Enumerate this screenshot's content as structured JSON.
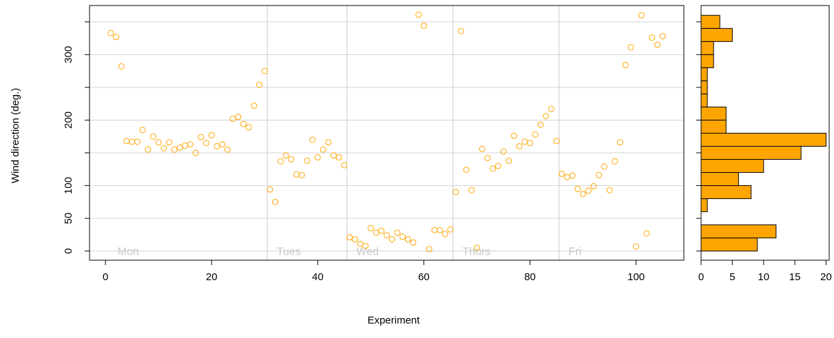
{
  "chart_data": [
    {
      "type": "scatter",
      "xlabel": "Experiment",
      "ylabel": "Wind direction (deg.)",
      "xlim": [
        -3,
        109
      ],
      "ylim": [
        -14,
        375
      ],
      "x_ticks": [
        0,
        20,
        40,
        60,
        80,
        100
      ],
      "y_ticks": [
        0,
        50,
        100,
        150,
        200,
        250,
        300,
        350
      ],
      "y_tick_labels": [
        "0",
        "50",
        "100",
        "",
        "200",
        "",
        "300",
        ""
      ],
      "grid": true,
      "day_dividers": [
        30.5,
        45.5,
        65.5,
        85.5
      ],
      "day_labels": [
        {
          "label": "Mon",
          "x": 1.5
        },
        {
          "label": "Tues",
          "x": 31.5
        },
        {
          "label": "Wed",
          "x": 46.5
        },
        {
          "label": "Thurs",
          "x": 66.5
        },
        {
          "label": "Fri",
          "x": 86.5
        }
      ],
      "series": [
        {
          "point_style": "open-circle",
          "x": [
            1,
            2,
            3,
            4,
            5,
            6,
            7,
            8,
            9,
            10,
            11,
            12,
            13,
            14,
            15,
            16,
            17,
            18,
            19,
            20,
            21,
            22,
            23,
            24,
            25,
            26,
            27,
            28,
            29,
            30,
            31,
            32,
            33,
            34,
            35,
            36,
            37,
            38,
            39,
            40,
            41,
            42,
            43,
            44,
            45,
            46,
            47,
            48,
            49,
            50,
            51,
            52,
            53,
            54,
            55,
            56,
            57,
            58,
            59,
            60,
            61,
            62,
            63,
            64,
            65,
            66,
            67,
            68,
            69,
            70,
            71,
            72,
            73,
            74,
            75,
            76,
            77,
            78,
            79,
            80,
            81,
            82,
            83,
            84,
            85,
            86,
            87,
            88,
            89,
            90,
            91,
            92,
            93,
            94,
            95,
            96,
            97,
            98,
            99,
            100,
            101,
            102,
            103,
            104,
            105
          ],
          "y": [
            333,
            327,
            282,
            168,
            167,
            167,
            185,
            155,
            175,
            166,
            157,
            166,
            155,
            158,
            161,
            163,
            150,
            174,
            165,
            177,
            160,
            163,
            155,
            202,
            205,
            194,
            189,
            222,
            254,
            275,
            94,
            75,
            137,
            146,
            140,
            117,
            116,
            138,
            170,
            143,
            155,
            166,
            146,
            143,
            131,
            21,
            18,
            11,
            8,
            35,
            28,
            31,
            24,
            18,
            28,
            22,
            18,
            13,
            361,
            344,
            3,
            32,
            32,
            26,
            33,
            90,
            336,
            124,
            93,
            5,
            156,
            142,
            126,
            130,
            152,
            138,
            176,
            160,
            167,
            165,
            178,
            193,
            206,
            217,
            168,
            118,
            113,
            115,
            95,
            87,
            92,
            99,
            116,
            129,
            93,
            137,
            166,
            284,
            311,
            7,
            360,
            27,
            326,
            315,
            328
          ]
        }
      ]
    },
    {
      "type": "bar",
      "orientation": "horizontal",
      "xlim": [
        0,
        20.5
      ],
      "x_ticks": [
        0,
        5,
        10,
        15,
        20
      ],
      "ylim": [
        -14,
        375
      ],
      "bin_width": 20,
      "bin_starts": [
        0,
        20,
        40,
        60,
        80,
        100,
        120,
        140,
        160,
        180,
        200,
        220,
        240,
        260,
        280,
        300,
        320,
        340
      ],
      "values": [
        9,
        12,
        0,
        1,
        8,
        6,
        10,
        16,
        20,
        4,
        4,
        1,
        1,
        1,
        2,
        2,
        5,
        3
      ]
    }
  ],
  "colors": {
    "points": "#FFA500",
    "bars": "#FFA500",
    "bar_outline": "#000000",
    "grid": "#d3d3d3",
    "frame": "#000000",
    "day_label": "#c8c8c8"
  }
}
